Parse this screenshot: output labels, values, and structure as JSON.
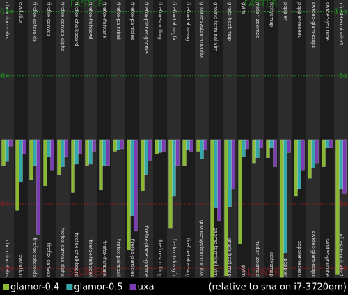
{
  "chart_data": {
    "type": "bar",
    "categories": [
      "chromium-tabs",
      "evolution",
      "firefox-asteroids",
      "firefox-canvas",
      "firefox-canvas-alpha",
      "firefox-chalkboard",
      "firefox-fishbowl",
      "firefox-fishtank",
      "firefox-paintball",
      "firefox-particles",
      "firefox-planet-gnome",
      "firefox-scrolling",
      "firefox-talos-gfx",
      "firefox-talos-svg",
      "gnome-system-monitor",
      "gnome-terminal-vim",
      "grads-heat-map",
      "gvim",
      "midori-zoomed",
      "ocitysmap",
      "poppler",
      "poppler-reseau",
      "swfdec-giant-steps",
      "swfdec-youtube",
      "xfce4-terminal-a1"
    ],
    "series": [
      {
        "name": "glamor-0.4",
        "color": "#8ab833",
        "values": [
          -3.0,
          -6.5,
          -4.1,
          -4.6,
          -3.7,
          -5.1,
          -3.0,
          -4.9,
          -1.9,
          -9.6,
          -5.0,
          -2.1,
          -7.9,
          -3.0,
          -1.9,
          -11.7,
          -11.6,
          -9.1,
          -2.8,
          -2.4,
          -11.7,
          -5.4,
          -4.0,
          -3.1,
          -11.5
        ]
      },
      {
        "name": "glamor-0.5",
        "color": "#33a6aa",
        "values": [
          -2.7,
          -4.3,
          -3.0,
          -2.3,
          -3.1,
          -2.9,
          -2.9,
          -3.0,
          -1.8,
          -6.9,
          -3.7,
          -2.0,
          -5.4,
          -1.8,
          -2.5,
          -6.3,
          -6.2,
          -2.3,
          -2.4,
          -1.6,
          -9.8,
          -4.8,
          -3.2,
          -1.6,
          -4.8
        ]
      },
      {
        "name": "uxa",
        "color": "#7a3db3",
        "values": [
          -1.5,
          -2.1,
          -8.4,
          -3.4,
          -2.3,
          -2.1,
          -1.9,
          -3.0,
          -1.7,
          -8.1,
          -2.6,
          -1.9,
          -3.0,
          -1.9,
          -1.8,
          -7.3,
          -4.8,
          -1.7,
          -1.6,
          -3.1,
          -2.0,
          -3.4,
          -2.8,
          -1.6,
          -5.2
        ]
      }
    ],
    "ylim": [
      -11.8,
      11.9
    ],
    "yticks": [
      {
        "value": 11,
        "label": "11x"
      },
      {
        "value": 6,
        "label": "6x"
      },
      {
        "value": -6,
        "label": "6x"
      },
      {
        "value": -11,
        "label": "11x"
      }
    ],
    "grid": true,
    "faster_label": "FASTER",
    "slower_label": "SLOWER",
    "note": "(relative to sna on i7-3720qm)"
  }
}
